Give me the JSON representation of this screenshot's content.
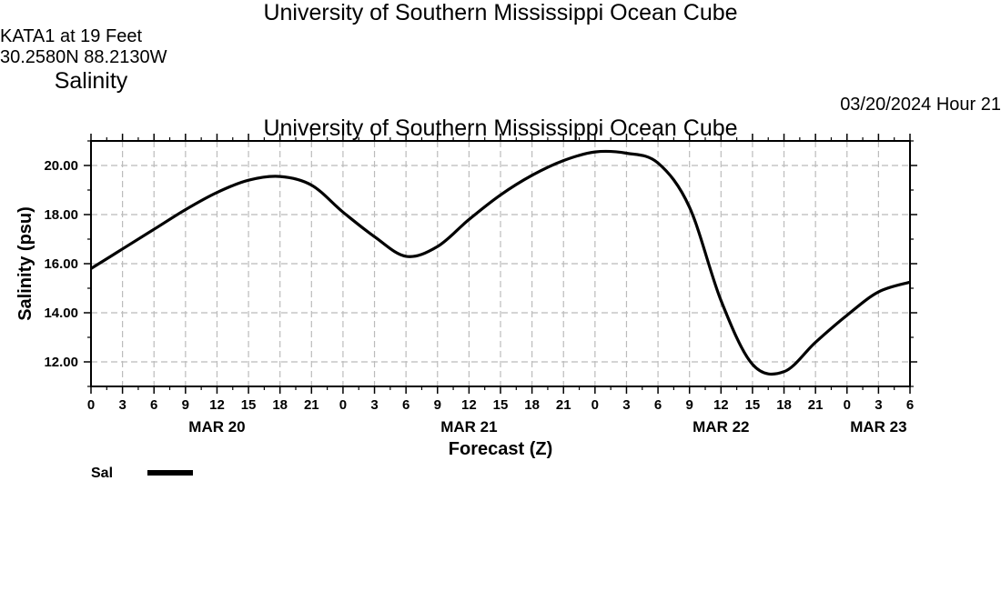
{
  "header": {
    "title": "University of Southern Mississippi Ocean Cube",
    "station": "KATA1 at 19 Feet",
    "coordinates": "30.2580N  88.2130W",
    "variable": "Salinity",
    "datetime": "03/20/2024 Hour 21"
  },
  "footer": {
    "title": "University of Southern Mississippi Ocean Cube"
  },
  "chart_data": {
    "type": "line",
    "title": "Salinity",
    "xlabel": "Forecast (Z)",
    "ylabel": "Salinity (psu)",
    "xlim": [
      0,
      78
    ],
    "ylim": [
      11,
      21
    ],
    "grid": true,
    "x_tick_labels": [
      "0",
      "3",
      "6",
      "9",
      "12",
      "15",
      "18",
      "21",
      "0",
      "3",
      "6",
      "9",
      "12",
      "15",
      "18",
      "21",
      "0",
      "3",
      "6",
      "9",
      "12",
      "15",
      "18",
      "21",
      "0",
      "3",
      "6"
    ],
    "y_ticks": [
      12,
      14,
      16,
      18,
      20
    ],
    "y_tick_labels": [
      "12.00",
      "14.00",
      "16.00",
      "18.00",
      "20.00"
    ],
    "day_labels": [
      {
        "label": "MAR 20",
        "hour": 12
      },
      {
        "label": "MAR 21",
        "hour": 36
      },
      {
        "label": "MAR 22",
        "hour": 60
      },
      {
        "label": "MAR 23",
        "hour": 75
      }
    ],
    "legend": {
      "label": "Sal",
      "placement": "bottom-left"
    },
    "series": [
      {
        "name": "Sal",
        "x": [
          0,
          3,
          6,
          9,
          12,
          15,
          18,
          21,
          24,
          27,
          30,
          33,
          36,
          39,
          42,
          45,
          48,
          51,
          54,
          57,
          60,
          63,
          66,
          69,
          72,
          75,
          78
        ],
        "values": [
          15.8,
          16.6,
          17.4,
          18.2,
          18.9,
          19.4,
          19.55,
          19.2,
          18.1,
          17.1,
          16.3,
          16.7,
          17.8,
          18.8,
          19.6,
          20.2,
          20.55,
          20.5,
          20.1,
          18.3,
          14.5,
          11.9,
          11.6,
          12.8,
          13.9,
          14.85,
          15.25
        ]
      }
    ]
  }
}
